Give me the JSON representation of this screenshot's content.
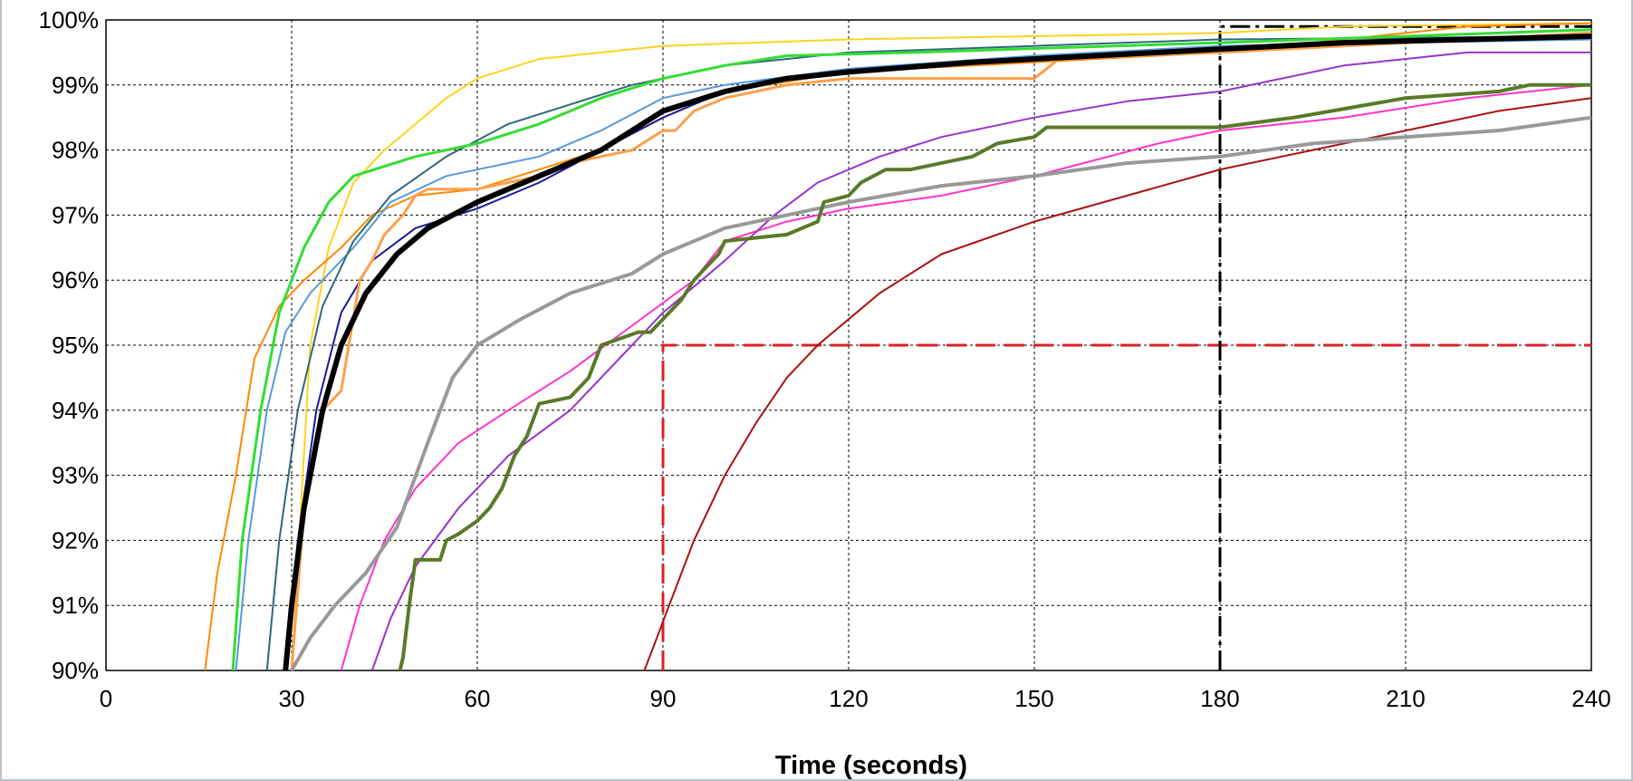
{
  "chart_data": {
    "type": "line",
    "title": "",
    "xlabel": "Time (seconds)",
    "ylabel": "",
    "xlim": [
      0,
      240
    ],
    "ylim": [
      90,
      100
    ],
    "x_ticks": [
      "0",
      "30",
      "60",
      "90",
      "120",
      "150",
      "180",
      "210",
      "240"
    ],
    "y_ticks": [
      "90%",
      "91%",
      "92%",
      "93%",
      "94%",
      "95%",
      "96%",
      "97%",
      "98%",
      "99%",
      "100%"
    ],
    "grid": true,
    "legend": "none",
    "series": [
      {
        "color": "#ffd21f",
        "width": 2,
        "points": [
          [
            30,
            90
          ],
          [
            33,
            95
          ],
          [
            36,
            96.5
          ],
          [
            40,
            97.5
          ],
          [
            45,
            98
          ],
          [
            50,
            98.4
          ],
          [
            55,
            98.8
          ],
          [
            60,
            99.1
          ],
          [
            70,
            99.4
          ],
          [
            80,
            99.5
          ],
          [
            90,
            99.6
          ],
          [
            120,
            99.7
          ],
          [
            180,
            99.8
          ],
          [
            200,
            99.9
          ],
          [
            240,
            99.95
          ]
        ]
      },
      {
        "color": "#33dd33",
        "width": 3,
        "points": [
          [
            20.5,
            90
          ],
          [
            22,
            92
          ],
          [
            25,
            94
          ],
          [
            28,
            95.5
          ],
          [
            32,
            96.5
          ],
          [
            36,
            97.2
          ],
          [
            40,
            97.6
          ],
          [
            50,
            97.9
          ],
          [
            60,
            98.1
          ],
          [
            70,
            98.4
          ],
          [
            80,
            98.8
          ],
          [
            90,
            99.1
          ],
          [
            100,
            99.3
          ],
          [
            110,
            99.45
          ],
          [
            130,
            99.5
          ],
          [
            180,
            99.65
          ],
          [
            210,
            99.75
          ],
          [
            240,
            99.85
          ]
        ]
      },
      {
        "color": "#ff8800",
        "width": 2,
        "points": [
          [
            16,
            90
          ],
          [
            18,
            91.5
          ],
          [
            21,
            93
          ],
          [
            24,
            94.8
          ],
          [
            28,
            95.6
          ],
          [
            32,
            96
          ],
          [
            38,
            96.5
          ],
          [
            43,
            97
          ],
          [
            50,
            97.3
          ],
          [
            60,
            97.4
          ],
          [
            70,
            97.7
          ],
          [
            80,
            98
          ],
          [
            90,
            98.5
          ],
          [
            100,
            98.9
          ],
          [
            120,
            99.2
          ],
          [
            150,
            99.35
          ],
          [
            180,
            99.5
          ],
          [
            200,
            99.7
          ],
          [
            210,
            99.8
          ],
          [
            220,
            99.9
          ],
          [
            240,
            99.95
          ]
        ]
      },
      {
        "color": "#5599dd",
        "width": 2,
        "points": [
          [
            21,
            90
          ],
          [
            23,
            92
          ],
          [
            26,
            94
          ],
          [
            29,
            95.2
          ],
          [
            33,
            95.8
          ],
          [
            40,
            96.5
          ],
          [
            46,
            97.2
          ],
          [
            55,
            97.6
          ],
          [
            70,
            97.9
          ],
          [
            80,
            98.3
          ],
          [
            90,
            98.8
          ],
          [
            100,
            99
          ],
          [
            120,
            99.25
          ],
          [
            150,
            99.45
          ],
          [
            180,
            99.6
          ],
          [
            210,
            99.65
          ],
          [
            240,
            99.7
          ]
        ]
      },
      {
        "color": "#2c6a7a",
        "width": 2,
        "points": [
          [
            26,
            90
          ],
          [
            28,
            92
          ],
          [
            31,
            94
          ],
          [
            35,
            95.6
          ],
          [
            40,
            96.6
          ],
          [
            46,
            97.3
          ],
          [
            55,
            97.9
          ],
          [
            65,
            98.4
          ],
          [
            75,
            98.7
          ],
          [
            85,
            99
          ],
          [
            100,
            99.3
          ],
          [
            120,
            99.5
          ],
          [
            150,
            99.6
          ],
          [
            180,
            99.7
          ],
          [
            240,
            99.75
          ]
        ]
      },
      {
        "color": "#1a1a99",
        "width": 2,
        "points": [
          [
            29,
            90
          ],
          [
            31,
            92
          ],
          [
            34,
            94
          ],
          [
            38,
            95.5
          ],
          [
            43,
            96.3
          ],
          [
            50,
            96.8
          ],
          [
            60,
            97.1
          ],
          [
            70,
            97.5
          ],
          [
            80,
            98
          ],
          [
            90,
            98.5
          ],
          [
            100,
            98.9
          ],
          [
            110,
            99.1
          ],
          [
            130,
            99.3
          ],
          [
            160,
            99.45
          ],
          [
            180,
            99.5
          ],
          [
            210,
            99.65
          ],
          [
            240,
            99.75
          ]
        ]
      },
      {
        "color": "#ff9f4a",
        "width": 3,
        "points": [
          [
            30,
            90
          ],
          [
            32,
            92.5
          ],
          [
            35,
            94
          ],
          [
            38,
            94.3
          ],
          [
            41,
            96
          ],
          [
            43,
            96.3
          ],
          [
            45,
            96.7
          ],
          [
            48,
            97
          ],
          [
            50,
            97.3
          ],
          [
            52,
            97.4
          ],
          [
            60,
            97.4
          ],
          [
            65,
            97.5
          ],
          [
            70,
            97.6
          ],
          [
            75,
            97.8
          ],
          [
            80,
            97.9
          ],
          [
            85,
            98
          ],
          [
            90,
            98.3
          ],
          [
            92,
            98.3
          ],
          [
            95,
            98.6
          ],
          [
            100,
            98.8
          ],
          [
            110,
            99
          ],
          [
            120,
            99.1
          ],
          [
            150,
            99.1
          ],
          [
            154,
            99.4
          ],
          [
            180,
            99.5
          ],
          [
            240,
            99.8
          ]
        ]
      },
      {
        "color": "#000000",
        "width": 6,
        "points": [
          [
            29,
            90
          ],
          [
            30,
            91
          ],
          [
            32,
            92.5
          ],
          [
            35,
            94
          ],
          [
            38,
            95
          ],
          [
            42,
            95.8
          ],
          [
            47,
            96.4
          ],
          [
            52,
            96.8
          ],
          [
            60,
            97.2
          ],
          [
            70,
            97.6
          ],
          [
            80,
            98
          ],
          [
            90,
            98.6
          ],
          [
            100,
            98.9
          ],
          [
            110,
            99.1
          ],
          [
            120,
            99.2
          ],
          [
            140,
            99.35
          ],
          [
            160,
            99.45
          ],
          [
            180,
            99.55
          ],
          [
            200,
            99.65
          ],
          [
            220,
            99.7
          ],
          [
            240,
            99.75
          ]
        ]
      },
      {
        "color": "#999999",
        "width": 4,
        "points": [
          [
            30,
            90
          ],
          [
            33,
            90.5
          ],
          [
            37,
            91
          ],
          [
            42,
            91.5
          ],
          [
            47,
            92.2
          ],
          [
            52,
            93.5
          ],
          [
            56,
            94.5
          ],
          [
            60,
            95
          ],
          [
            67,
            95.4
          ],
          [
            75,
            95.8
          ],
          [
            85,
            96.1
          ],
          [
            90,
            96.4
          ],
          [
            100,
            96.8
          ],
          [
            110,
            97
          ],
          [
            120,
            97.2
          ],
          [
            135,
            97.45
          ],
          [
            150,
            97.6
          ],
          [
            165,
            97.8
          ],
          [
            180,
            97.9
          ],
          [
            195,
            98.1
          ],
          [
            210,
            98.2
          ],
          [
            225,
            98.3
          ],
          [
            240,
            98.5
          ]
        ]
      },
      {
        "color": "#ff33cc",
        "width": 2,
        "points": [
          [
            38,
            90
          ],
          [
            41,
            91
          ],
          [
            45,
            92
          ],
          [
            50,
            92.8
          ],
          [
            57,
            93.5
          ],
          [
            65,
            94
          ],
          [
            75,
            94.6
          ],
          [
            85,
            95.3
          ],
          [
            95,
            96
          ],
          [
            100,
            96.6
          ],
          [
            110,
            96.9
          ],
          [
            120,
            97.1
          ],
          [
            135,
            97.3
          ],
          [
            150,
            97.6
          ],
          [
            170,
            98.1
          ],
          [
            180,
            98.3
          ],
          [
            200,
            98.5
          ],
          [
            220,
            98.8
          ],
          [
            240,
            99
          ]
        ]
      },
      {
        "color": "#9933cc",
        "width": 2,
        "points": [
          [
            43,
            90
          ],
          [
            46,
            90.8
          ],
          [
            50,
            91.6
          ],
          [
            57,
            92.5
          ],
          [
            65,
            93.3
          ],
          [
            75,
            94
          ],
          [
            85,
            95
          ],
          [
            90,
            95.5
          ],
          [
            100,
            96.3
          ],
          [
            108,
            97
          ],
          [
            115,
            97.5
          ],
          [
            125,
            97.9
          ],
          [
            135,
            98.2
          ],
          [
            150,
            98.5
          ],
          [
            165,
            98.75
          ],
          [
            180,
            98.9
          ],
          [
            190,
            99.1
          ],
          [
            200,
            99.3
          ],
          [
            220,
            99.5
          ],
          [
            240,
            99.5
          ]
        ]
      },
      {
        "color": "#5a7a28",
        "width": 4,
        "points": [
          [
            47.5,
            90
          ],
          [
            48,
            90.2
          ],
          [
            49,
            91
          ],
          [
            50,
            91.7
          ],
          [
            53,
            91.7
          ],
          [
            54,
            91.7
          ],
          [
            55,
            92
          ],
          [
            57,
            92.1
          ],
          [
            60,
            92.3
          ],
          [
            62,
            92.5
          ],
          [
            64,
            92.8
          ],
          [
            66,
            93.3
          ],
          [
            68,
            93.6
          ],
          [
            70,
            94.1
          ],
          [
            75,
            94.2
          ],
          [
            78,
            94.5
          ],
          [
            80,
            95
          ],
          [
            86,
            95.2
          ],
          [
            88,
            95.2
          ],
          [
            90,
            95.4
          ],
          [
            93,
            95.7
          ],
          [
            95,
            96
          ],
          [
            97,
            96.2
          ],
          [
            99,
            96.4
          ],
          [
            100,
            96.6
          ],
          [
            110,
            96.7
          ],
          [
            115,
            96.9
          ],
          [
            116,
            97.2
          ],
          [
            120,
            97.3
          ],
          [
            122,
            97.5
          ],
          [
            126,
            97.7
          ],
          [
            130,
            97.7
          ],
          [
            140,
            97.9
          ],
          [
            144,
            98.1
          ],
          [
            150,
            98.2
          ],
          [
            152,
            98.35
          ],
          [
            180,
            98.35
          ],
          [
            192,
            98.5
          ],
          [
            210,
            98.8
          ],
          [
            225,
            98.9
          ],
          [
            230,
            99
          ],
          [
            240,
            99
          ]
        ]
      },
      {
        "color": "#aa1111",
        "width": 2,
        "points": [
          [
            87,
            90
          ],
          [
            89,
            90.5
          ],
          [
            91,
            91
          ],
          [
            95,
            92
          ],
          [
            100,
            93
          ],
          [
            105,
            93.8
          ],
          [
            110,
            94.5
          ],
          [
            115,
            95
          ],
          [
            120,
            95.4
          ],
          [
            125,
            95.8
          ],
          [
            135,
            96.4
          ],
          [
            150,
            96.9
          ],
          [
            165,
            97.3
          ],
          [
            180,
            97.7
          ],
          [
            195,
            98
          ],
          [
            210,
            98.3
          ],
          [
            225,
            98.6
          ],
          [
            240,
            98.8
          ]
        ]
      }
    ],
    "reference_lines": [
      {
        "color": "#dd2222",
        "dash": "long-dash",
        "points": [
          [
            90,
            90
          ],
          [
            90,
            95
          ],
          [
            240,
            95
          ]
        ]
      },
      {
        "color": "#000000",
        "dash": "dash-dot",
        "points": [
          [
            180,
            90
          ],
          [
            180,
            99.9
          ],
          [
            240,
            99.9
          ]
        ]
      }
    ]
  }
}
